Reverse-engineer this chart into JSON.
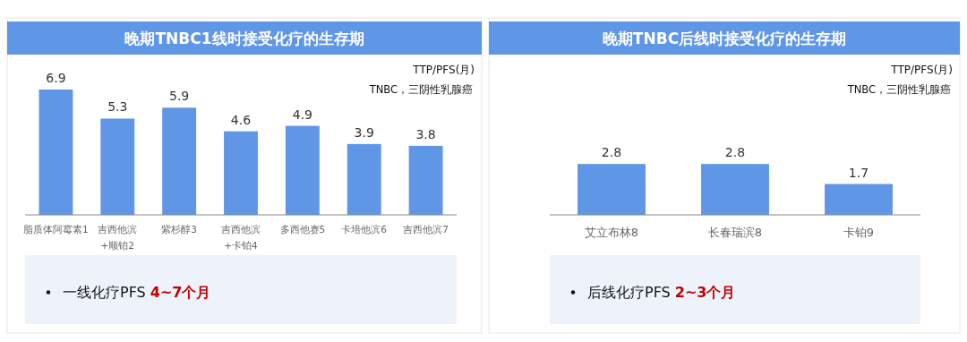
{
  "chart_data": [
    {
      "type": "bar",
      "title": "晚期TNBC1线时接受化疗的生存期",
      "ylabel": "TTP/PFS(月)",
      "categories": [
        "脂质体阿霉素1",
        "吉西他滨+顺铂2",
        "紫杉醇3",
        "吉西他滨+卡铂4",
        "多西他赛5",
        "卡培他滨6",
        "吉西他滨7"
      ],
      "values": [
        6.9,
        5.3,
        5.9,
        4.6,
        4.9,
        3.9,
        3.8
      ],
      "color": "#6096e6",
      "data_labels": true,
      "annotations": [
        "TNBC，三阴性乳腺癌",
        "一线化疗PFS",
        "4~7个月"
      ]
    },
    {
      "type": "bar",
      "title": "晚期TNBC后线时接受化疗的生存期",
      "ylabel": "TTP/PFS(月)",
      "categories": [
        "艾立布林8",
        "长春瑞滨8",
        "卡铂9"
      ],
      "values": [
        2.8,
        2.8,
        1.7
      ],
      "color": "#6096e6",
      "data_labels": true,
      "annotations": [
        "TNBC，三阴性乳腺癌",
        "后线化疗PFS",
        "2~3个月"
      ]
    }
  ]
}
